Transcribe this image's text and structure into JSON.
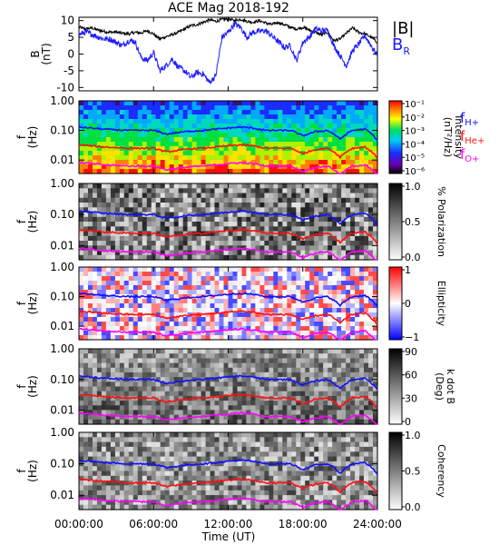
{
  "title": "ACE Mag 2018-192",
  "xaxis": {
    "label": "Time (UT)",
    "ticks": [
      "00:00:00",
      "06:00:00",
      "12:00:00",
      "18:00:00",
      "24:00:00"
    ],
    "tick_hours": [
      0,
      6,
      12,
      18,
      24
    ],
    "range_hours": [
      0,
      24
    ]
  },
  "colors": {
    "btotal": "#000000",
    "br": "#1a1aff",
    "fhp": "#1010ff",
    "fhe": "#ff1010",
    "fo": "#ff00ff"
  },
  "chart_data": [
    {
      "type": "line",
      "panel": "field",
      "ylabel_lines": [
        "B",
        "(nT)"
      ],
      "ylim": [
        -11,
        11
      ],
      "yticks": [
        -10,
        -5,
        0,
        5,
        10
      ],
      "x_hours": [
        0,
        0.5,
        1,
        1.5,
        2,
        2.5,
        3,
        3.5,
        4,
        4.5,
        5,
        5.5,
        6,
        6.5,
        7,
        7.5,
        8,
        8.5,
        9,
        9.5,
        10,
        10.5,
        11,
        11.5,
        12,
        12.5,
        13,
        13.5,
        14,
        14.5,
        15,
        15.5,
        16,
        16.5,
        17,
        17.5,
        18,
        18.5,
        19,
        19.5,
        20,
        20.5,
        21,
        21.5,
        22,
        22.5,
        23,
        23.5,
        24
      ],
      "series": [
        {
          "name": "|B|",
          "values": [
            8,
            7.5,
            7.8,
            7.2,
            6.8,
            6.5,
            6.6,
            6.2,
            6,
            6.5,
            6.3,
            7,
            6,
            4.5,
            5.2,
            5.8,
            6.5,
            7.5,
            8.5,
            8.8,
            9.5,
            10.2,
            9.8,
            10.3,
            10.5,
            10,
            10.4,
            9.8,
            9.5,
            10,
            9.3,
            8.8,
            9.5,
            8.8,
            8,
            7.5,
            8,
            7.2,
            6.5,
            5.8,
            6.5,
            4,
            4.5,
            6.2,
            7.8,
            6.5,
            6,
            5,
            3.5
          ]
        },
        {
          "name": "B",
          "sub": "R",
          "values": [
            5.8,
            6.5,
            6,
            5.2,
            4.5,
            4.5,
            3.5,
            2.5,
            4,
            3.8,
            -1,
            -2,
            0.5,
            -5,
            -3.5,
            -1.5,
            -4,
            -5,
            -7,
            -5.5,
            -6,
            -8.5,
            -6.5,
            5,
            6.5,
            9,
            8,
            5,
            6.5,
            6.8,
            7,
            5.5,
            3.8,
            2,
            2.5,
            -2,
            3.5,
            5,
            7.5,
            7,
            7,
            2.5,
            -0.5,
            -3.5,
            1,
            3,
            5.5,
            2.5,
            -0.5
          ]
        }
      ]
    },
    {
      "type": "heatmap",
      "panel": "intensity",
      "ylabel_lines": [
        "f",
        "(Hz)"
      ],
      "yscale": "log",
      "ylim": [
        0.0035,
        1.0
      ],
      "yticks": [
        "1.00",
        "0.10",
        "0.01"
      ],
      "colorbar": {
        "label_lines": [
          "Intensity",
          "(nT²/Hz)"
        ],
        "scale": "log",
        "ticks": [
          "10⁻¹",
          "10⁻²",
          "10⁻³",
          "10⁻⁴",
          "10⁻⁵",
          "10⁻⁶"
        ]
      },
      "legend": [
        {
          "f": "f",
          "sub": "H+"
        },
        {
          "f": "f",
          "sub": "He+"
        },
        {
          "f": "f",
          "sub": "O+"
        }
      ]
    },
    {
      "type": "heatmap",
      "panel": "polarization",
      "ylabel_lines": [
        "f",
        "(Hz)"
      ],
      "yscale": "log",
      "ylim": [
        0.0035,
        1.0
      ],
      "yticks": [
        "1.00",
        "0.10",
        "0.01"
      ],
      "colorbar": {
        "label_lines": [
          "% Polarization"
        ],
        "ticks": [
          "1.0",
          "0.5",
          "0.0"
        ]
      }
    },
    {
      "type": "heatmap",
      "panel": "ellipticity",
      "ylabel_lines": [
        "f",
        "(Hz)"
      ],
      "yscale": "log",
      "ylim": [
        0.0035,
        1.0
      ],
      "yticks": [
        "1.00",
        "0.10",
        "0.01"
      ],
      "colorbar": {
        "label_lines": [
          "Ellipticity"
        ],
        "ticks": [
          "1",
          "0",
          "−1"
        ]
      }
    },
    {
      "type": "heatmap",
      "panel": "kdotb",
      "ylabel_lines": [
        "f",
        "(Hz)"
      ],
      "yscale": "log",
      "ylim": [
        0.0035,
        1.0
      ],
      "yticks": [
        "1.00",
        "0.10",
        "0.01"
      ],
      "colorbar": {
        "label_lines": [
          "k dot B",
          "(Deg)"
        ],
        "ticks": [
          "90",
          "60",
          "30",
          "0"
        ]
      }
    },
    {
      "type": "heatmap",
      "panel": "coherency",
      "ylabel_lines": [
        "f",
        "(Hz)"
      ],
      "yscale": "log",
      "ylim": [
        0.0035,
        1.0
      ],
      "yticks": [
        "1.00",
        "0.10",
        "0.01"
      ],
      "colorbar": {
        "label_lines": [
          "Coherency"
        ],
        "ticks": [
          "1.0",
          "0.5",
          "0.0"
        ]
      }
    }
  ],
  "gyrofrequencies": {
    "x_hours": [
      0,
      1,
      2,
      3,
      4,
      5,
      6,
      7,
      8,
      9,
      10,
      11,
      12,
      13,
      14,
      15,
      16,
      17,
      18,
      19,
      20,
      21,
      22,
      23,
      24
    ],
    "f_hplus_hz": [
      0.13,
      0.12,
      0.11,
      0.105,
      0.1,
      0.1,
      0.1,
      0.075,
      0.085,
      0.095,
      0.1,
      0.11,
      0.12,
      0.13,
      0.12,
      0.1,
      0.1,
      0.1,
      0.065,
      0.09,
      0.1,
      0.05,
      0.1,
      0.11,
      0.045
    ]
  }
}
